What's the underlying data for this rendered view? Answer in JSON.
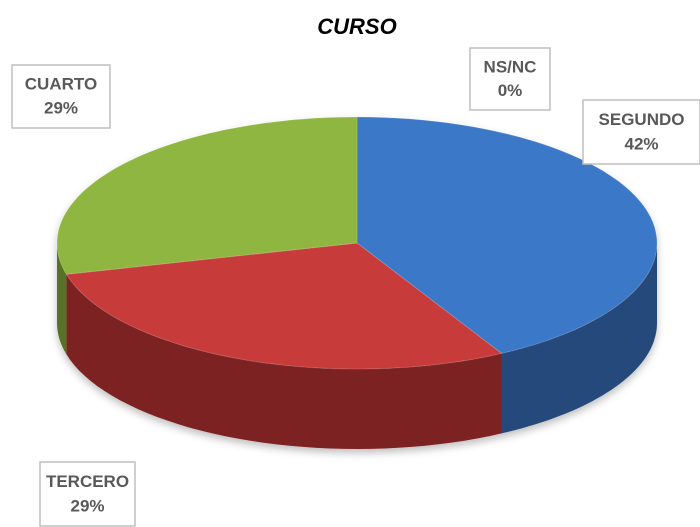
{
  "chart_data": {
    "type": "pie3d",
    "title": "CURSO",
    "categories": [
      "NS/NC",
      "SEGUNDO",
      "TERCERO",
      "CUARTO"
    ],
    "values": [
      0,
      42,
      29,
      29
    ],
    "value_labels": [
      "0%",
      "42%",
      "29%",
      "29%"
    ],
    "colors": [
      "#a5a5a5",
      "#3b78c7",
      "#c83a3a",
      "#8fb640"
    ]
  }
}
